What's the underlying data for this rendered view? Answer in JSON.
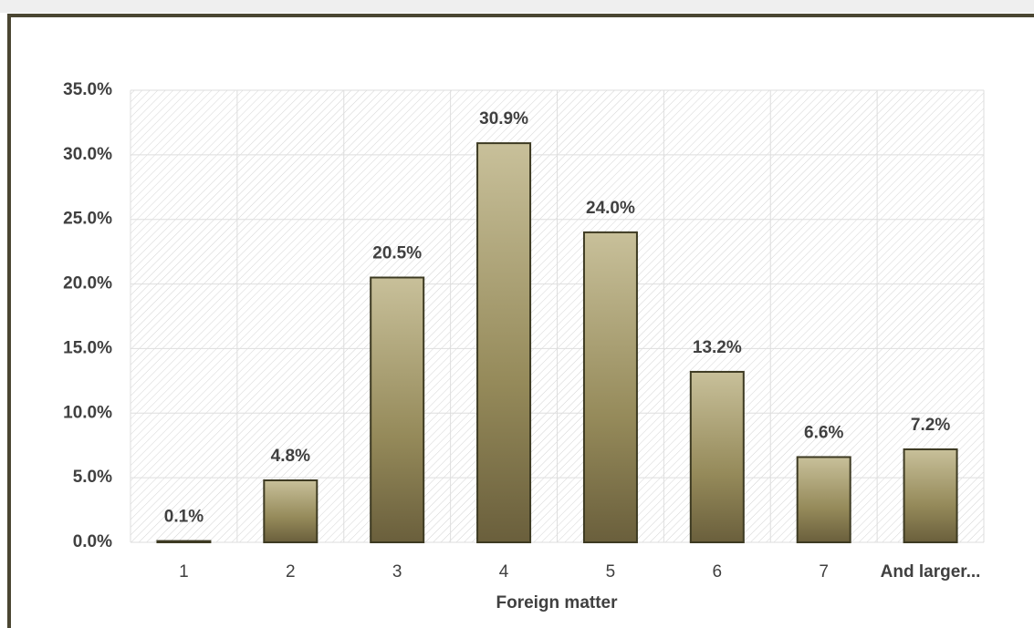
{
  "chart_data": {
    "type": "bar",
    "x_label": "Foreign matter",
    "categories": [
      "1",
      "2",
      "3",
      "4",
      "5",
      "6",
      "7",
      "And larger..."
    ],
    "values": [
      0.1,
      4.8,
      20.5,
      30.9,
      24.0,
      13.2,
      6.6,
      7.2
    ],
    "value_labels": [
      "0.1%",
      "4.8%",
      "20.5%",
      "30.9%",
      "24.0%",
      "13.2%",
      "6.6%",
      "7.2%"
    ],
    "color": "#a39a6c",
    "ylim": [
      0,
      35
    ],
    "yticks": [
      {
        "value": 0,
        "label": "0.0%"
      },
      {
        "value": 5,
        "label": "5.0%"
      },
      {
        "value": 10,
        "label": "10.0%"
      },
      {
        "value": 15,
        "label": "15.0%"
      },
      {
        "value": 20,
        "label": "20.0%"
      },
      {
        "value": 25,
        "label": "25.0%"
      },
      {
        "value": 30,
        "label": "30.0%"
      },
      {
        "value": 35,
        "label": "35.0%"
      }
    ],
    "grid": true
  }
}
